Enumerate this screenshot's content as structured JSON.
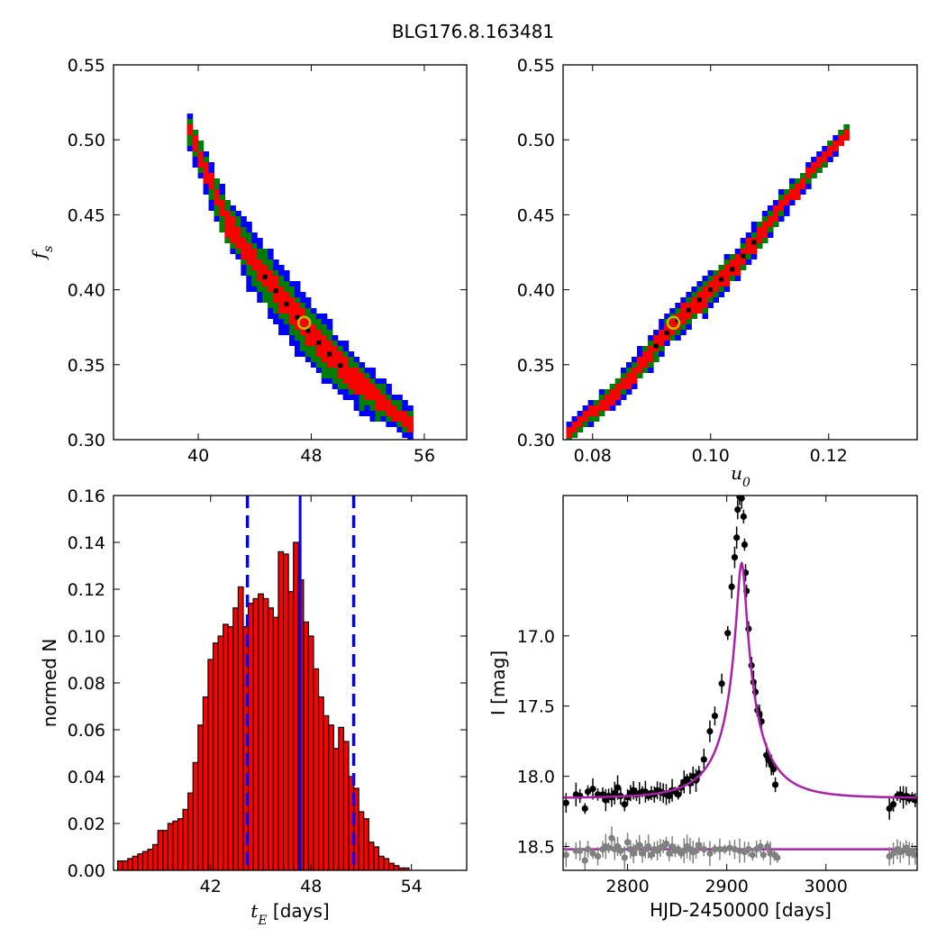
{
  "figure": {
    "title": "BLG176.8.163481"
  },
  "colors": {
    "sigma3": "#0000ff",
    "sigma2": "#007f00",
    "sigma1": "#ff0000",
    "mode": "#000000",
    "best_marker": "#bfbf00",
    "hist_bar": "#ff0000",
    "hist_line": "#0000ff",
    "model_curve": "#aa20aa",
    "data_primary": "#000000",
    "data_secondary": "#808080"
  },
  "chart_data": [
    {
      "id": "tE_vs_fs",
      "type": "heatmap",
      "title": "",
      "xlabel": "",
      "ylabel": "f_s",
      "xlim": [
        34,
        59
      ],
      "ylim": [
        0.3,
        0.55
      ],
      "xticks": [
        "40",
        "48",
        "56"
      ],
      "yticks": [
        "0.30",
        "0.35",
        "0.40",
        "0.45",
        "0.50",
        "0.55"
      ],
      "regions": [
        "3-sigma (blue)",
        "2-sigma (green)",
        "1-sigma (red)",
        "mode (black)"
      ],
      "ridge": [
        [
          39.4,
          0.505
        ],
        [
          42,
          0.445
        ],
        [
          45,
          0.405
        ],
        [
          48,
          0.37
        ],
        [
          51,
          0.34
        ],
        [
          55,
          0.31
        ]
      ],
      "best_fit": {
        "x": 47.5,
        "y": 0.378
      }
    },
    {
      "id": "u0_vs_fs",
      "type": "heatmap",
      "title": "",
      "xlabel": "u_0",
      "ylabel": "",
      "xlim": [
        0.075,
        0.135
      ],
      "ylim": [
        0.3,
        0.55
      ],
      "xticks": [
        "0.08",
        "0.10",
        "0.12"
      ],
      "yticks": [
        "0.30",
        "0.35",
        "0.40",
        "0.45",
        "0.50",
        "0.55"
      ],
      "ridge": [
        [
          0.076,
          0.305
        ],
        [
          0.085,
          0.335
        ],
        [
          0.094,
          0.378
        ],
        [
          0.104,
          0.415
        ],
        [
          0.113,
          0.46
        ],
        [
          0.123,
          0.505
        ]
      ],
      "best_fit": {
        "x": 0.0937,
        "y": 0.378
      }
    },
    {
      "id": "tE_histogram",
      "type": "bar",
      "title": "",
      "xlabel": "t_E [days]",
      "ylabel": "normed N",
      "xlim": [
        36.2,
        57.3
      ],
      "ylim": [
        0,
        0.16
      ],
      "xticks": [
        "42",
        "48",
        "54"
      ],
      "yticks": [
        "0.00",
        "0.02",
        "0.04",
        "0.06",
        "0.08",
        "0.10",
        "0.12",
        "0.14",
        "0.16"
      ],
      "bin_start": 36.45,
      "bin_width": 0.3,
      "values": [
        0.004,
        0.004,
        0.005,
        0.006,
        0.007,
        0.008,
        0.009,
        0.011,
        0.017,
        0.017,
        0.02,
        0.021,
        0.022,
        0.026,
        0.033,
        0.046,
        0.062,
        0.074,
        0.09,
        0.097,
        0.1,
        0.105,
        0.104,
        0.112,
        0.121,
        0.104,
        0.114,
        0.116,
        0.118,
        0.116,
        0.112,
        0.108,
        0.136,
        0.135,
        0.119,
        0.14,
        0.124,
        0.106,
        0.1,
        0.086,
        0.074,
        0.066,
        0.062,
        0.052,
        0.061,
        0.055,
        0.04,
        0.035,
        0.025,
        0.022,
        0.012,
        0.01,
        0.006,
        0.005,
        0.003,
        0.002,
        0.001,
        0.001
      ],
      "median": 47.35,
      "lower": 44.2,
      "upper": 50.55
    },
    {
      "id": "light_curve",
      "type": "scatter",
      "title": "",
      "xlabel": "HJD-2450000 [days]",
      "ylabel": "I [mag]",
      "xlim": [
        2735,
        3092
      ],
      "ylim": [
        18.67,
        16.0
      ],
      "xticks": [
        "2800",
        "2900",
        "3000"
      ],
      "yticks": [
        "17.0",
        "17.5",
        "18.0",
        "18.5"
      ],
      "model": {
        "t0": 2915,
        "tE": 47.5,
        "u0": 0.0937,
        "fs": 0.378,
        "I_base": 18.155
      },
      "baseline_secondary": 18.52,
      "series": [
        {
          "name": "",
          "points": [
            [
              2738,
              18.19
            ],
            [
              2748,
              18.13
            ],
            [
              2752,
              18.14
            ],
            [
              2757,
              18.23
            ],
            [
              2760,
              18.11
            ],
            [
              2765,
              18.09
            ],
            [
              2770,
              18.13
            ],
            [
              2775,
              18.13
            ],
            [
              2778,
              18.17
            ],
            [
              2781,
              18.14
            ],
            [
              2784,
              18.15
            ],
            [
              2787,
              18.12
            ],
            [
              2790,
              18.08
            ],
            [
              2793,
              18.14
            ],
            [
              2797,
              18.2
            ],
            [
              2800,
              18.15
            ],
            [
              2803,
              18.12
            ],
            [
              2806,
              18.1
            ],
            [
              2809,
              18.13
            ],
            [
              2812,
              18.12
            ],
            [
              2815,
              18.11
            ],
            [
              2818,
              18.11
            ],
            [
              2821,
              18.14
            ],
            [
              2824,
              18.12
            ],
            [
              2827,
              18.13
            ],
            [
              2830,
              18.1
            ],
            [
              2833,
              18.11
            ],
            [
              2836,
              18.12
            ],
            [
              2839,
              18.13
            ],
            [
              2842,
              18.14
            ],
            [
              2845,
              18.1
            ],
            [
              2848,
              18.11
            ],
            [
              2851,
              18.13
            ],
            [
              2854,
              18.08
            ],
            [
              2857,
              18.04
            ],
            [
              2860,
              18.02
            ],
            [
              2863,
              18.05
            ],
            [
              2866,
              18.0
            ],
            [
              2869,
              18.03
            ],
            [
              2872,
              17.98
            ],
            [
              2877,
              17.88
            ],
            [
              2883,
              17.68
            ],
            [
              2888,
              17.57
            ],
            [
              2895,
              17.34
            ],
            [
              2901,
              16.98
            ],
            [
              2905,
              16.65
            ],
            [
              2908,
              16.44
            ],
            [
              2910,
              16.3
            ],
            [
              2911,
              16.1
            ],
            [
              2913,
              16.01
            ],
            [
              2915,
              16.02
            ],
            [
              2917,
              16.15
            ],
            [
              2918,
              16.35
            ],
            [
              2919,
              16.55
            ],
            [
              2920,
              16.68
            ],
            [
              2922,
              16.95
            ],
            [
              2925,
              17.21
            ],
            [
              2927,
              17.33
            ],
            [
              2929,
              17.4
            ],
            [
              2931,
              17.53
            ],
            [
              2933,
              17.56
            ],
            [
              2935,
              17.61
            ],
            [
              2940,
              17.85
            ],
            [
              2942,
              17.88
            ],
            [
              2945,
              17.92
            ],
            [
              2947,
              17.95
            ],
            [
              2949,
              18.06
            ],
            [
              3064,
              18.23
            ],
            [
              3068,
              18.2
            ],
            [
              3072,
              18.14
            ],
            [
              3075,
              18.13
            ],
            [
              3078,
              18.15
            ],
            [
              3081,
              18.14
            ],
            [
              3084,
              18.16
            ],
            [
              3087,
              18.15
            ],
            [
              3090,
              18.17
            ]
          ]
        },
        {
          "name": "",
          "points": [
            [
              2738,
              18.56
            ],
            [
              2748,
              18.53
            ],
            [
              2752,
              18.53
            ],
            [
              2757,
              18.6
            ],
            [
              2760,
              18.52
            ],
            [
              2765,
              18.55
            ],
            [
              2770,
              18.57
            ],
            [
              2775,
              18.52
            ],
            [
              2778,
              18.5
            ],
            [
              2781,
              18.51
            ],
            [
              2784,
              18.44
            ],
            [
              2787,
              18.52
            ],
            [
              2790,
              18.5
            ],
            [
              2793,
              18.53
            ],
            [
              2797,
              18.58
            ],
            [
              2800,
              18.47
            ],
            [
              2803,
              18.52
            ],
            [
              2806,
              18.55
            ],
            [
              2809,
              18.51
            ],
            [
              2812,
              18.49
            ],
            [
              2815,
              18.55
            ],
            [
              2818,
              18.52
            ],
            [
              2821,
              18.5
            ],
            [
              2824,
              18.56
            ],
            [
              2827,
              18.52
            ],
            [
              2830,
              18.53
            ],
            [
              2833,
              18.51
            ],
            [
              2836,
              18.5
            ],
            [
              2839,
              18.48
            ],
            [
              2842,
              18.55
            ],
            [
              2845,
              18.5
            ],
            [
              2848,
              18.53
            ],
            [
              2851,
              18.52
            ],
            [
              2854,
              18.55
            ],
            [
              2857,
              18.53
            ],
            [
              2860,
              18.5
            ],
            [
              2863,
              18.52
            ],
            [
              2866,
              18.54
            ],
            [
              2869,
              18.53
            ],
            [
              2872,
              18.49
            ],
            [
              2877,
              18.52
            ],
            [
              2883,
              18.55
            ],
            [
              2888,
              18.52
            ],
            [
              2893,
              18.52
            ],
            [
              2898,
              18.52
            ],
            [
              2903,
              18.51
            ],
            [
              2908,
              18.52
            ],
            [
              2913,
              18.53
            ],
            [
              2918,
              18.54
            ],
            [
              2922,
              18.52
            ],
            [
              2926,
              18.56
            ],
            [
              2930,
              18.52
            ],
            [
              2934,
              18.5
            ],
            [
              2937,
              18.56
            ],
            [
              2941,
              18.5
            ],
            [
              2944,
              18.55
            ],
            [
              2948,
              18.56
            ],
            [
              2951,
              18.58
            ],
            [
              3064,
              18.57
            ],
            [
              3068,
              18.55
            ],
            [
              3072,
              18.52
            ],
            [
              3075,
              18.54
            ],
            [
              3078,
              18.53
            ],
            [
              3081,
              18.51
            ],
            [
              3084,
              18.55
            ],
            [
              3087,
              18.53
            ],
            [
              3090,
              18.56
            ]
          ]
        }
      ]
    }
  ]
}
